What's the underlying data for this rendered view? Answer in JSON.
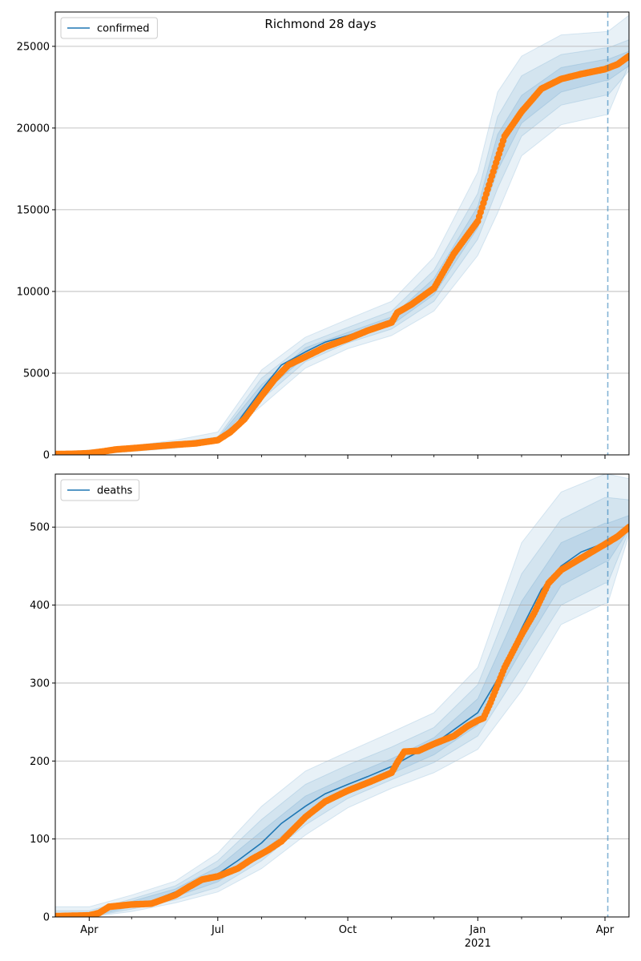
{
  "figure": {
    "title": "Richmond 28 days"
  },
  "chart_data": [
    {
      "type": "line",
      "title": "",
      "legend": {
        "entries": [
          "confirmed"
        ],
        "location": "upper-left"
      },
      "xlabel": "",
      "ylabel": "",
      "x_type": "date",
      "x_range": [
        "2020-03-08",
        "2021-04-18"
      ],
      "ylim": [
        0,
        27100
      ],
      "y_ticks": [
        0,
        5000,
        10000,
        15000,
        20000,
        25000
      ],
      "y_tick_labels": [
        "0",
        "5000",
        "10000",
        "15000",
        "20000",
        "25000"
      ],
      "x_ticks": [
        "2020-04-01",
        "2020-07-01",
        "2020-10-01",
        "2021-01-01",
        "2021-04-01"
      ],
      "x_tick_labels": [
        "Apr",
        "Jul",
        "Oct",
        "Jan",
        "Apr"
      ],
      "x_year_label": "2021",
      "grid": "horizontal",
      "forecast_start": "2021-04-03",
      "colors": {
        "model": "#1f77b4",
        "observed": "#ff7f0e",
        "band": "#1f77b4",
        "forecast_line": "#1f77b4"
      },
      "series": [
        {
          "name": "confirmed",
          "role": "model",
          "x": [
            "2020-03-08",
            "2020-04-01",
            "2020-05-01",
            "2020-06-01",
            "2020-07-01",
            "2020-07-15",
            "2020-08-01",
            "2020-08-15",
            "2020-09-01",
            "2020-09-15",
            "2020-10-01",
            "2020-10-15",
            "2020-11-01",
            "2020-11-15",
            "2020-12-01",
            "2020-12-15",
            "2021-01-01",
            "2021-01-15",
            "2021-02-01",
            "2021-02-15",
            "2021-03-01",
            "2021-03-15",
            "2021-04-01",
            "2021-04-03"
          ],
          "y": [
            50,
            100,
            350,
            620,
            950,
            2000,
            4000,
            5500,
            6300,
            6900,
            7300,
            7700,
            8200,
            9200,
            10300,
            12200,
            14500,
            18500,
            21000,
            22400,
            23000,
            23300,
            23550,
            23600
          ]
        },
        {
          "name": "observed",
          "role": "observed",
          "x": [
            "2020-03-08",
            "2020-03-20",
            "2020-04-01",
            "2020-04-10",
            "2020-04-20",
            "2020-05-01",
            "2020-05-15",
            "2020-06-01",
            "2020-06-15",
            "2020-07-01",
            "2020-07-10",
            "2020-07-20",
            "2020-08-01",
            "2020-08-10",
            "2020-08-20",
            "2020-09-01",
            "2020-09-15",
            "2020-10-01",
            "2020-10-15",
            "2020-11-01",
            "2020-11-05",
            "2020-11-15",
            "2020-12-01",
            "2020-12-15",
            "2021-01-01",
            "2021-01-10",
            "2021-01-20",
            "2021-02-01",
            "2021-02-15",
            "2021-03-01",
            "2021-03-15",
            "2021-04-01",
            "2021-04-10",
            "2021-04-18"
          ],
          "y": [
            50,
            60,
            100,
            200,
            330,
            400,
            500,
            620,
            700,
            900,
            1400,
            2200,
            3600,
            4600,
            5500,
            6000,
            6600,
            7100,
            7600,
            8100,
            8700,
            9200,
            10200,
            12300,
            14300,
            16800,
            19500,
            21000,
            22400,
            23000,
            23300,
            23600,
            23900,
            24400
          ]
        }
      ],
      "bands": [
        {
          "level": "outer",
          "x": [
            "2020-03-08",
            "2020-04-01",
            "2020-05-01",
            "2020-06-01",
            "2020-07-01",
            "2020-08-01",
            "2020-09-01",
            "2020-10-01",
            "2020-11-01",
            "2020-12-01",
            "2021-01-01",
            "2021-01-15",
            "2021-02-01",
            "2021-03-01",
            "2021-04-01",
            "2021-04-03",
            "2021-04-18"
          ],
          "low": [
            0,
            0,
            200,
            400,
            800,
            3000,
            5300,
            6500,
            7300,
            8800,
            12200,
            14800,
            18300,
            20200,
            20800,
            20800,
            23900
          ],
          "high": [
            150,
            300,
            550,
            900,
            1400,
            5200,
            7200,
            8300,
            9400,
            12100,
            17300,
            22200,
            24400,
            25700,
            25900,
            25900,
            26900
          ]
        },
        {
          "level": "middle",
          "x": [
            "2020-03-08",
            "2020-04-01",
            "2020-05-01",
            "2020-06-01",
            "2020-07-01",
            "2020-08-01",
            "2020-09-01",
            "2020-10-01",
            "2020-11-01",
            "2020-12-01",
            "2021-01-01",
            "2021-01-15",
            "2021-02-01",
            "2021-03-01",
            "2021-04-01",
            "2021-04-03",
            "2021-04-18"
          ],
          "low": [
            0,
            50,
            270,
            500,
            870,
            3400,
            5700,
            6850,
            7700,
            9400,
            13200,
            16300,
            19500,
            21400,
            22000,
            22000,
            23500
          ],
          "high": [
            100,
            200,
            450,
            750,
            1100,
            4700,
            6800,
            7800,
            8800,
            11300,
            16000,
            20700,
            23200,
            24500,
            24900,
            24900,
            25400
          ]
        },
        {
          "level": "inner",
          "x": [
            "2020-03-08",
            "2020-04-01",
            "2020-05-01",
            "2020-06-01",
            "2020-07-01",
            "2020-08-01",
            "2020-09-01",
            "2020-10-01",
            "2020-11-01",
            "2020-12-01",
            "2021-01-01",
            "2021-01-15",
            "2021-02-01",
            "2021-03-01",
            "2021-04-01",
            "2021-04-03",
            "2021-04-18"
          ],
          "low": [
            20,
            80,
            320,
            570,
            920,
            3700,
            6000,
            7100,
            7950,
            9800,
            13900,
            17400,
            20300,
            22200,
            22900,
            22900,
            23800
          ],
          "high": [
            80,
            150,
            400,
            680,
            1000,
            4300,
            6550,
            7500,
            8450,
            10800,
            15200,
            19600,
            22000,
            23700,
            24200,
            24200,
            24700
          ]
        }
      ]
    },
    {
      "type": "line",
      "title": "",
      "legend": {
        "entries": [
          "deaths"
        ],
        "location": "upper-left"
      },
      "xlabel": "",
      "ylabel": "",
      "x_type": "date",
      "x_range": [
        "2020-03-08",
        "2021-04-18"
      ],
      "ylim": [
        0,
        568
      ],
      "y_ticks": [
        0,
        100,
        200,
        300,
        400,
        500
      ],
      "y_tick_labels": [
        "0",
        "100",
        "200",
        "300",
        "400",
        "500"
      ],
      "x_ticks": [
        "2020-04-01",
        "2020-07-01",
        "2020-10-01",
        "2021-01-01",
        "2021-04-01"
      ],
      "x_tick_labels": [
        "Apr",
        "Jul",
        "Oct",
        "Jan",
        "Apr"
      ],
      "x_year_label": "2021",
      "grid": "horizontal",
      "forecast_start": "2021-04-03",
      "colors": {
        "model": "#1f77b4",
        "observed": "#ff7f0e",
        "band": "#1f77b4",
        "forecast_line": "#1f77b4"
      },
      "series": [
        {
          "name": "deaths",
          "role": "model",
          "x": [
            "2020-03-08",
            "2020-04-01",
            "2020-04-15",
            "2020-05-01",
            "2020-05-15",
            "2020-06-01",
            "2020-06-15",
            "2020-07-01",
            "2020-07-15",
            "2020-08-01",
            "2020-08-15",
            "2020-09-01",
            "2020-09-15",
            "2020-10-01",
            "2020-10-15",
            "2020-11-01",
            "2020-11-15",
            "2020-12-01",
            "2020-12-15",
            "2021-01-01",
            "2021-01-15",
            "2021-02-01",
            "2021-02-15",
            "2021-03-01",
            "2021-03-15",
            "2021-04-01",
            "2021-04-03"
          ],
          "y": [
            1,
            2,
            10,
            17,
            20,
            32,
            42,
            55,
            72,
            95,
            120,
            142,
            158,
            170,
            180,
            193,
            207,
            222,
            240,
            262,
            305,
            370,
            420,
            450,
            468,
            480,
            481
          ]
        },
        {
          "name": "observed",
          "role": "observed",
          "x": [
            "2020-03-08",
            "2020-04-01",
            "2020-04-08",
            "2020-04-15",
            "2020-05-01",
            "2020-05-15",
            "2020-06-01",
            "2020-06-10",
            "2020-06-20",
            "2020-07-01",
            "2020-07-15",
            "2020-07-25",
            "2020-08-05",
            "2020-08-15",
            "2020-09-01",
            "2020-09-15",
            "2020-10-01",
            "2020-10-15",
            "2020-11-01",
            "2020-11-05",
            "2020-11-10",
            "2020-11-20",
            "2020-12-01",
            "2020-12-15",
            "2020-12-25",
            "2021-01-01",
            "2021-01-05",
            "2021-01-10",
            "2021-01-20",
            "2021-02-01",
            "2021-02-10",
            "2021-02-20",
            "2021-03-01",
            "2021-03-15",
            "2021-04-01",
            "2021-04-10",
            "2021-04-18"
          ],
          "y": [
            1,
            2,
            5,
            13,
            16,
            17,
            28,
            38,
            48,
            52,
            62,
            74,
            85,
            97,
            128,
            148,
            162,
            172,
            185,
            198,
            212,
            213,
            222,
            232,
            245,
            252,
            255,
            275,
            320,
            362,
            390,
            428,
            445,
            460,
            478,
            488,
            500
          ]
        }
      ],
      "bands": [
        {
          "level": "outer",
          "x": [
            "2020-03-08",
            "2020-04-01",
            "2020-05-01",
            "2020-06-01",
            "2020-07-01",
            "2020-08-01",
            "2020-09-01",
            "2020-10-01",
            "2020-11-01",
            "2020-12-01",
            "2021-01-01",
            "2021-02-01",
            "2021-03-01",
            "2021-04-01",
            "2021-04-03",
            "2021-04-18"
          ],
          "low": [
            0,
            0,
            7,
            18,
            32,
            62,
            105,
            140,
            165,
            185,
            215,
            290,
            375,
            402,
            402,
            490
          ],
          "high": [
            13,
            13,
            28,
            46,
            82,
            142,
            187,
            212,
            237,
            262,
            320,
            480,
            545,
            568,
            568,
            562
          ]
        },
        {
          "level": "middle",
          "x": [
            "2020-03-08",
            "2020-04-01",
            "2020-05-01",
            "2020-06-01",
            "2020-07-01",
            "2020-08-01",
            "2020-09-01",
            "2020-10-01",
            "2020-11-01",
            "2020-12-01",
            "2021-01-01",
            "2021-02-01",
            "2021-03-01",
            "2021-04-01",
            "2021-04-03",
            "2021-04-18"
          ],
          "low": [
            0,
            0,
            10,
            22,
            38,
            72,
            118,
            152,
            176,
            198,
            232,
            320,
            400,
            428,
            428,
            495
          ],
          "high": [
            8,
            8,
            23,
            40,
            72,
            125,
            170,
            195,
            218,
            243,
            298,
            440,
            510,
            538,
            538,
            535
          ]
        },
        {
          "level": "inner",
          "x": [
            "2020-03-08",
            "2020-04-01",
            "2020-05-01",
            "2020-06-01",
            "2020-07-01",
            "2020-08-01",
            "2020-09-01",
            "2020-10-01",
            "2020-11-01",
            "2020-12-01",
            "2021-01-01",
            "2021-02-01",
            "2021-03-01",
            "2021-04-01",
            "2021-04-03",
            "2021-04-18"
          ],
          "low": [
            0,
            0,
            13,
            26,
            45,
            82,
            130,
            162,
            184,
            208,
            246,
            342,
            425,
            455,
            455,
            497
          ],
          "high": [
            4,
            4,
            20,
            36,
            64,
            110,
            155,
            180,
            203,
            230,
            280,
            405,
            480,
            505,
            505,
            515
          ]
        }
      ]
    }
  ]
}
